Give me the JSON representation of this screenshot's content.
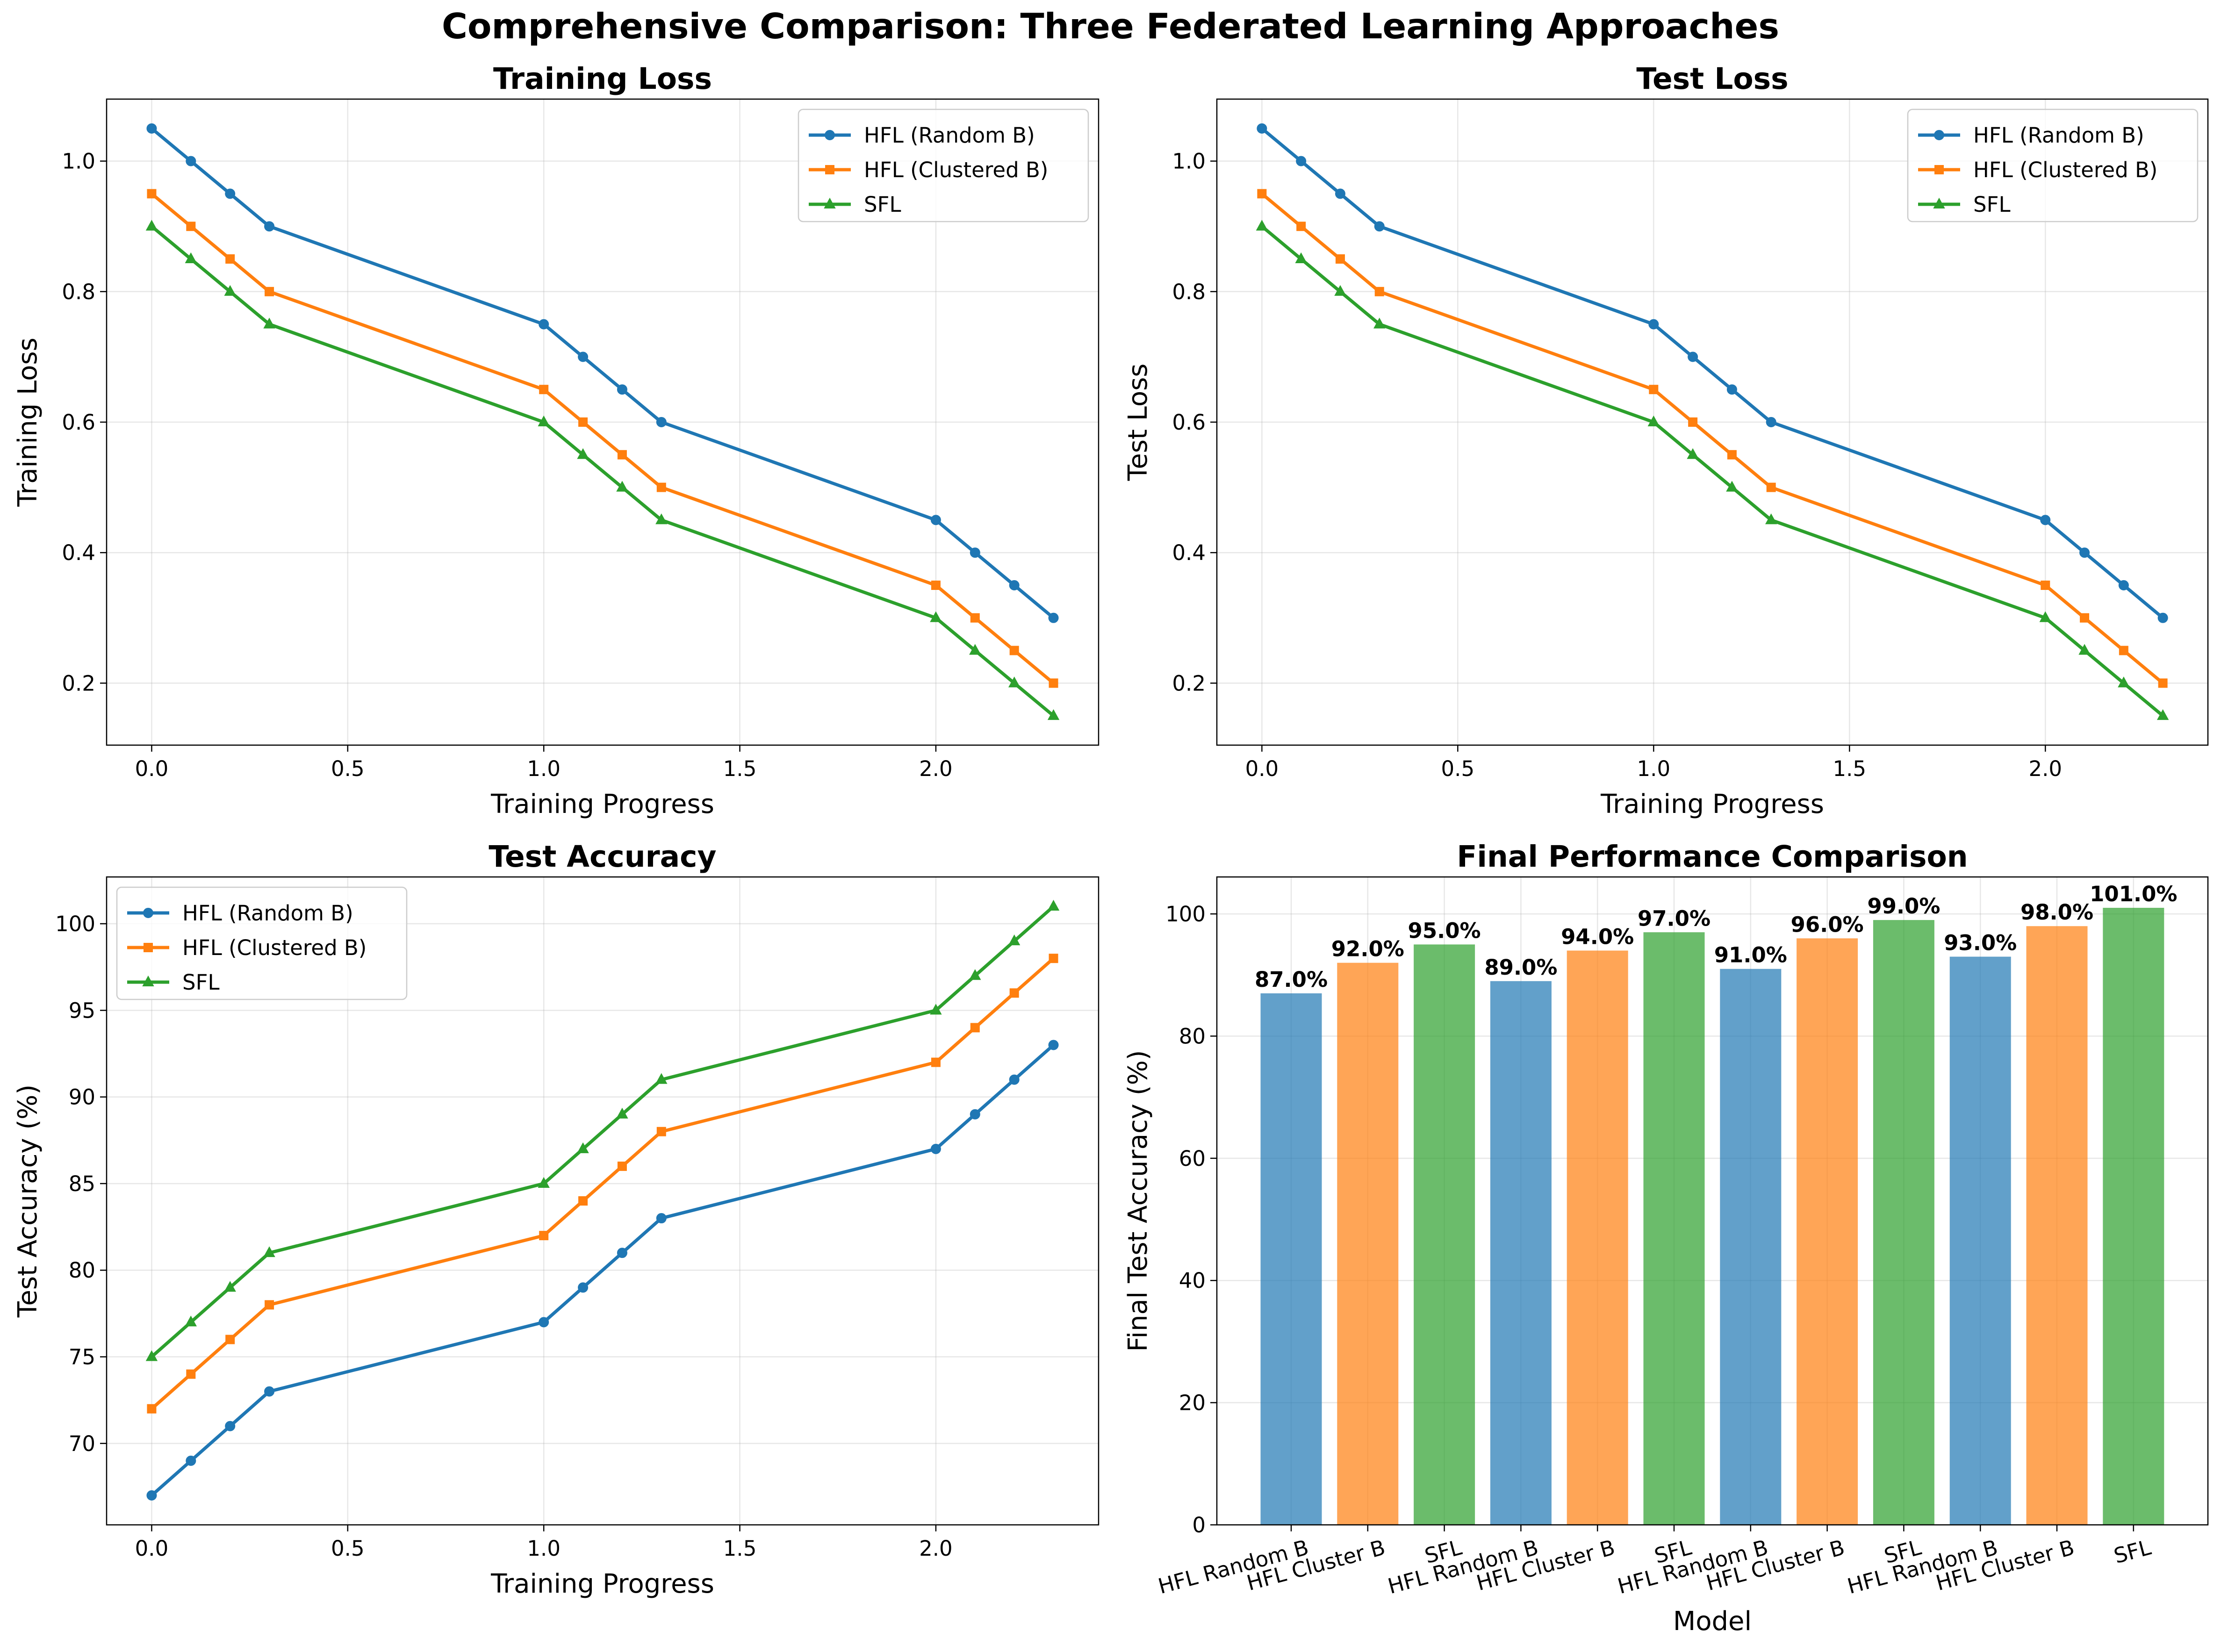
{
  "figure": {
    "title": "Comprehensive Comparison: Three Federated Learning Approaches"
  },
  "series_colors": {
    "HFL (Random B)": "#1f77b4",
    "HFL (Clustered B)": "#ff7f0e",
    "SFL": "#2ca02c"
  },
  "chart_data": [
    {
      "type": "line",
      "title": "Training Loss",
      "xlabel": "Training Progress",
      "ylabel": "Training Loss",
      "xlim": [
        -0.115,
        2.415
      ],
      "ylim": [
        0.105,
        1.095
      ],
      "xticks": [
        0.0,
        0.5,
        1.0,
        1.5,
        2.0
      ],
      "yticks": [
        0.2,
        0.4,
        0.6,
        0.8,
        1.0
      ],
      "grid": true,
      "legend_position": "upper right",
      "x": [
        0.0,
        0.1,
        0.2,
        0.3,
        1.0,
        1.1,
        1.2,
        1.3,
        2.0,
        2.1,
        2.2,
        2.3
      ],
      "series": [
        {
          "name": "HFL (Random B)",
          "marker": "circle",
          "values": [
            1.05,
            1.0,
            0.95,
            0.9,
            0.75,
            0.7,
            0.65,
            0.6,
            0.45,
            0.4,
            0.35,
            0.3
          ]
        },
        {
          "name": "HFL (Clustered B)",
          "marker": "square",
          "values": [
            0.95,
            0.9,
            0.85,
            0.8,
            0.65,
            0.6,
            0.55,
            0.5,
            0.35,
            0.3,
            0.25,
            0.2
          ]
        },
        {
          "name": "SFL",
          "marker": "triangle",
          "values": [
            0.9,
            0.85,
            0.8,
            0.75,
            0.6,
            0.55,
            0.5,
            0.45,
            0.3,
            0.25,
            0.2,
            0.15
          ]
        }
      ]
    },
    {
      "type": "line",
      "title": "Test Loss",
      "xlabel": "Training Progress",
      "ylabel": "Test Loss",
      "xlim": [
        -0.115,
        2.415
      ],
      "ylim": [
        0.105,
        1.095
      ],
      "xticks": [
        0.0,
        0.5,
        1.0,
        1.5,
        2.0
      ],
      "yticks": [
        0.2,
        0.4,
        0.6,
        0.8,
        1.0
      ],
      "grid": true,
      "legend_position": "upper right",
      "x": [
        0.0,
        0.1,
        0.2,
        0.3,
        1.0,
        1.1,
        1.2,
        1.3,
        2.0,
        2.1,
        2.2,
        2.3
      ],
      "series": [
        {
          "name": "HFL (Random B)",
          "marker": "circle",
          "values": [
            1.05,
            1.0,
            0.95,
            0.9,
            0.75,
            0.7,
            0.65,
            0.6,
            0.45,
            0.4,
            0.35,
            0.3
          ]
        },
        {
          "name": "HFL (Clustered B)",
          "marker": "square",
          "values": [
            0.95,
            0.9,
            0.85,
            0.8,
            0.65,
            0.6,
            0.55,
            0.5,
            0.35,
            0.3,
            0.25,
            0.2
          ]
        },
        {
          "name": "SFL",
          "marker": "triangle",
          "values": [
            0.9,
            0.85,
            0.8,
            0.75,
            0.6,
            0.55,
            0.5,
            0.45,
            0.3,
            0.25,
            0.2,
            0.15
          ]
        }
      ]
    },
    {
      "type": "line",
      "title": "Test Accuracy",
      "xlabel": "Training Progress",
      "ylabel": "Test Accuracy (%)",
      "xlim": [
        -0.115,
        2.415
      ],
      "ylim": [
        65.3,
        102.7
      ],
      "xticks": [
        0.0,
        0.5,
        1.0,
        1.5,
        2.0
      ],
      "yticks": [
        70,
        75,
        80,
        85,
        90,
        95,
        100
      ],
      "grid": true,
      "legend_position": "upper left",
      "x": [
        0.0,
        0.1,
        0.2,
        0.3,
        1.0,
        1.1,
        1.2,
        1.3,
        2.0,
        2.1,
        2.2,
        2.3
      ],
      "series": [
        {
          "name": "HFL (Random B)",
          "marker": "circle",
          "values": [
            67,
            69,
            71,
            73,
            77,
            79,
            81,
            83,
            87,
            89,
            91,
            93
          ]
        },
        {
          "name": "HFL (Clustered B)",
          "marker": "square",
          "values": [
            72,
            74,
            76,
            78,
            82,
            84,
            86,
            88,
            92,
            94,
            96,
            98
          ]
        },
        {
          "name": "SFL",
          "marker": "triangle",
          "values": [
            75,
            77,
            79,
            81,
            85,
            87,
            89,
            91,
            95,
            97,
            99,
            101
          ]
        }
      ]
    },
    {
      "type": "bar",
      "title": "Final Performance Comparison",
      "xlabel": "Model",
      "ylabel": "Final Test Accuracy (%)",
      "ylim": [
        0,
        106.05
      ],
      "yticks": [
        0,
        20,
        40,
        60,
        80,
        100
      ],
      "grid": true,
      "tick_rotation": 15,
      "categories": [
        "HFL Random B",
        "HFL Cluster B",
        "SFL",
        "HFL Random B",
        "HFL Cluster B",
        "SFL",
        "HFL Random B",
        "HFL Cluster B",
        "SFL",
        "HFL Random B",
        "HFL Cluster B",
        "SFL"
      ],
      "values": [
        87.0,
        92.0,
        95.0,
        89.0,
        94.0,
        97.0,
        91.0,
        96.0,
        99.0,
        93.0,
        98.0,
        101.0
      ],
      "value_labels": [
        "87.0%",
        "92.0%",
        "95.0%",
        "89.0%",
        "94.0%",
        "97.0%",
        "91.0%",
        "96.0%",
        "99.0%",
        "93.0%",
        "98.0%",
        "101.0%"
      ],
      "bar_colors": [
        "#1f77b4",
        "#ff7f0e",
        "#2ca02c",
        "#1f77b4",
        "#ff7f0e",
        "#2ca02c",
        "#1f77b4",
        "#ff7f0e",
        "#2ca02c",
        "#1f77b4",
        "#ff7f0e",
        "#2ca02c"
      ]
    }
  ]
}
